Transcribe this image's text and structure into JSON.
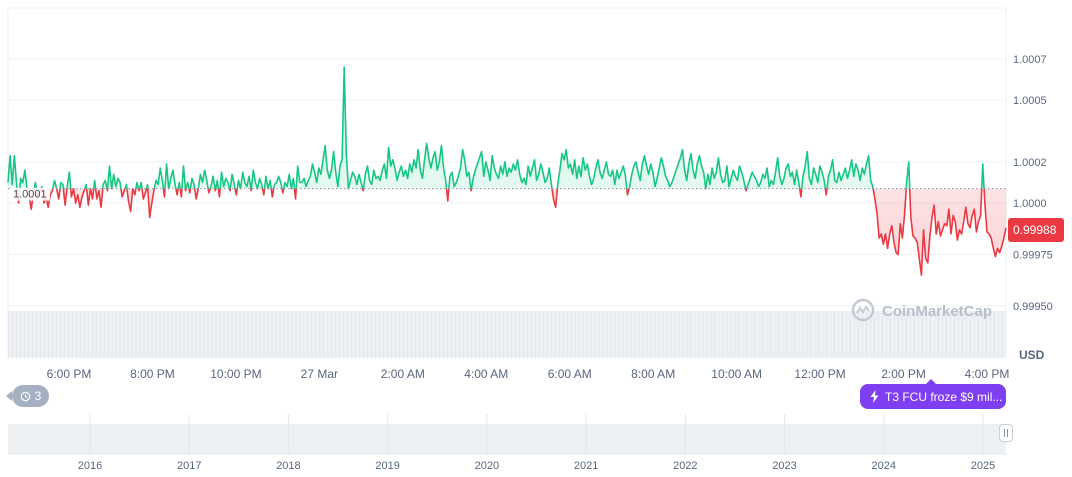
{
  "chart_data": {
    "type": "line",
    "unit": "USD",
    "y_ticks": [
      "1.0007",
      "1.0005",
      "1.0002",
      "1.0000",
      "0.99975",
      "0.99950"
    ],
    "ylim": [
      0.9994,
      1.00098
    ],
    "reference_value": 1.00007,
    "reference_label": "1.0001",
    "current_price": 0.99988,
    "current_price_label": "0.99988",
    "x_ticks": [
      "6:00 PM",
      "8:00 PM",
      "10:00 PM",
      "27 Mar",
      "2:00 AM",
      "4:00 AM",
      "6:00 AM",
      "8:00 AM",
      "10:00 AM",
      "12:00 PM",
      "2:00 PM",
      "4:00 PM"
    ],
    "navigator_ticks": [
      "2016",
      "2017",
      "2018",
      "2019",
      "2020",
      "2021",
      "2022",
      "2023",
      "2024",
      "2025"
    ],
    "colors": {
      "up": "#16c784",
      "down": "#ea3943",
      "badge": "#ea3943"
    },
    "series": [
      {
        "values": [
          1.0001,
          1.00023,
          1.00009,
          1.00023,
          1.0001,
          1.0,
          1.00012,
          1.0001,
          1.00016,
          1.00007,
          1.00003,
          0.99997,
          1.00005,
          1.0001,
          1.00002,
          1.00006,
          1.00008,
          1.0,
          1.00003,
          0.99998,
          1.00004,
          1.00006,
          1.00011,
          1.00007,
          1.00002,
          1.0001,
          1.00009,
          0.99999,
          1.00008,
          1.00015,
          1.00003,
          1.00007,
          1.0,
          1.00004,
          0.99998,
          1.00003,
          1.00006,
          1.00009,
          0.99999,
          1.00007,
          1.00002,
          1.00011,
          1.00002,
          1.00006,
          0.99998,
          1.00009,
          1.00011,
          1.00006,
          1.00018,
          1.00007,
          1.00014,
          1.00008,
          1.00012,
          1.0001,
          1.00003,
          1.00006,
          1.00009,
          1.00001,
          0.99996,
          1.00007,
          1.00004,
          1.0001,
          1.00006,
          1.0001,
          1.00002,
          1.00005,
          1.00009,
          0.99993,
          1.0,
          1.00006,
          1.00011,
          1.00009,
          1.00017,
          1.00011,
          1.00003,
          1.00019,
          1.00007,
          1.00012,
          1.00016,
          1.00009,
          1.00004,
          1.0001,
          1.00003,
          1.00018,
          1.00006,
          1.0001,
          1.00005,
          1.00012,
          1.00009,
          1.00002,
          1.00007,
          1.00014,
          1.0001,
          1.00016,
          1.00011,
          1.00005,
          1.00008,
          1.00013,
          1.00006,
          1.00011,
          1.00003,
          1.00015,
          1.00008,
          1.00012,
          1.0001,
          1.00006,
          1.00014,
          1.00009,
          1.00004,
          1.00011,
          1.00007,
          1.00015,
          1.0001,
          1.00008,
          1.00013,
          1.00006,
          1.00016,
          1.0001,
          1.00007,
          1.00012,
          1.00009,
          1.00004,
          1.00013,
          1.00007,
          1.00011,
          1.00003,
          1.00009,
          1.0001,
          1.00013,
          1.0001,
          1.00005,
          1.0001,
          1.00008,
          1.00014,
          1.00007,
          1.00012,
          1.00002,
          1.00018,
          1.0001,
          1.0001,
          1.00012,
          1.00008,
          1.00011,
          1.00013,
          1.00019,
          1.00015,
          1.0001,
          1.00017,
          1.00014,
          1.00021,
          1.00028,
          1.00016,
          1.00012,
          1.00016,
          1.00025,
          1.00015,
          1.00008,
          1.00018,
          1.00021,
          1.00066,
          1.00024,
          1.00007,
          1.00011,
          1.00015,
          1.00013,
          1.00009,
          1.00014,
          1.0001,
          1.00006,
          1.00014,
          1.00018,
          1.00011,
          1.00009,
          1.00016,
          1.00012,
          1.00013,
          1.00011,
          1.00016,
          1.00019,
          1.00012,
          1.00027,
          1.00018,
          1.00021,
          1.00017,
          1.00011,
          1.00015,
          1.00018,
          1.00013,
          1.00016,
          1.00012,
          1.00019,
          1.00015,
          1.00021,
          1.00017,
          1.00026,
          1.00016,
          1.00012,
          1.00021,
          1.00029,
          1.00022,
          1.00017,
          1.00022,
          1.00025,
          1.00016,
          1.0002,
          1.00028,
          1.00017,
          1.00011,
          1.00001,
          1.00013,
          1.00015,
          1.00008,
          1.0001,
          1.00013,
          1.00017,
          1.00026,
          1.00021,
          1.00013,
          1.00015,
          1.00006,
          1.00012,
          1.00016,
          1.00019,
          1.00022,
          1.00025,
          1.00013,
          1.0002,
          1.00016,
          1.00011,
          1.00023,
          1.00017,
          1.00014,
          1.00012,
          1.00018,
          1.00014,
          1.0002,
          1.00013,
          1.00017,
          1.00015,
          1.00019,
          1.00016,
          1.00021,
          1.00014,
          1.0001,
          1.00012,
          1.00009,
          1.00018,
          1.00013,
          1.00017,
          1.00021,
          1.00011,
          1.00014,
          1.00019,
          1.00015,
          1.0001,
          1.00012,
          1.00017,
          1.00009,
          1.00002,
          0.99998,
          1.00009,
          1.00016,
          1.00024,
          1.00021,
          1.00026,
          1.00017,
          1.00019,
          1.00014,
          1.00021,
          1.00012,
          1.00018,
          1.00013,
          1.00022,
          1.00016,
          1.00019,
          1.00013,
          1.00009,
          1.00012,
          1.00017,
          1.00021,
          1.00015,
          1.00012,
          1.00016,
          1.0002,
          1.00014,
          1.00013,
          1.00016,
          1.00009,
          1.00016,
          1.00012,
          1.00015,
          1.00018,
          1.00013,
          1.00004,
          1.00008,
          1.00014,
          1.00018,
          1.0002,
          1.00015,
          1.00011,
          1.00019,
          1.00023,
          1.00018,
          1.00014,
          1.00019,
          1.00015,
          1.00008,
          1.00012,
          1.00017,
          1.00022,
          1.00018,
          1.00013,
          1.00011,
          1.00008,
          1.0001,
          1.00013,
          1.00016,
          1.00019,
          1.00022,
          1.00026,
          1.00016,
          1.00011,
          1.00019,
          1.00024,
          1.00016,
          1.00012,
          1.00019,
          1.00023,
          1.00018,
          1.00015,
          1.00007,
          1.00014,
          1.00009,
          1.00017,
          1.00012,
          1.00015,
          1.00022,
          1.00014,
          1.0001,
          1.00011,
          1.00018,
          1.00008,
          1.00012,
          1.00016,
          1.00013,
          1.00011,
          1.00018,
          1.00015,
          1.00011,
          1.00006,
          1.00009,
          1.00012,
          1.00015,
          1.00013,
          1.00011,
          1.00008,
          1.0001,
          1.00014,
          1.00012,
          1.00017,
          1.00008,
          1.00011,
          1.00009,
          1.00015,
          1.00022,
          1.00013,
          1.00009,
          1.00012,
          1.00017,
          1.00019,
          1.00013,
          1.00015,
          1.00009,
          1.00016,
          1.0001,
          1.00003,
          1.00013,
          1.00018,
          1.00025,
          1.00012,
          1.00009,
          1.00017,
          1.00014,
          1.0001,
          1.00018,
          1.00015,
          1.00011,
          1.00004,
          1.00013,
          1.00016,
          1.00021,
          1.00011,
          1.0001,
          1.00015,
          1.00011,
          1.00014,
          1.00017,
          1.00012,
          1.00016,
          1.00021,
          1.00013,
          1.00019,
          1.00016,
          1.00011,
          1.00017,
          1.00014,
          1.00019,
          1.00023,
          1.00011,
          1.00008,
          1.00002,
          0.99995,
          0.99983,
          0.99985,
          0.9998,
          0.99985,
          0.99978,
          0.99985,
          0.99989,
          0.99981,
          0.99976,
          0.99975,
          0.9999,
          0.99983,
          0.99994,
          1.0001,
          1.0002,
          0.99993,
          0.99984,
          0.99983,
          0.99981,
          0.99973,
          0.99965,
          0.99987,
          0.99973,
          0.99971,
          0.99984,
          0.99993,
          0.99999,
          0.99985,
          0.99991,
          0.99984,
          0.99987,
          0.9999,
          0.99989,
          0.99997,
          0.99985,
          0.99994,
          0.99991,
          0.99982,
          0.99987,
          0.99985,
          0.99991,
          0.99998,
          0.9999,
          0.99988,
          0.99994,
          0.99997,
          0.99986,
          0.99991,
          0.99994,
          1.00019,
          1.0,
          0.99986,
          0.99985,
          0.99983,
          0.99978,
          0.99974,
          0.99978,
          0.99976,
          0.99979,
          0.99983,
          0.99988
        ]
      }
    ]
  },
  "watermark": {
    "brand": "CoinMarketCap",
    "icon": "coinmarketcap-logo-icon"
  },
  "events_badge": {
    "icon": "history-icon",
    "count": "3"
  },
  "news_badge": {
    "icon": "lightning-icon",
    "text": "T3 FCU froze $9 mil..."
  }
}
